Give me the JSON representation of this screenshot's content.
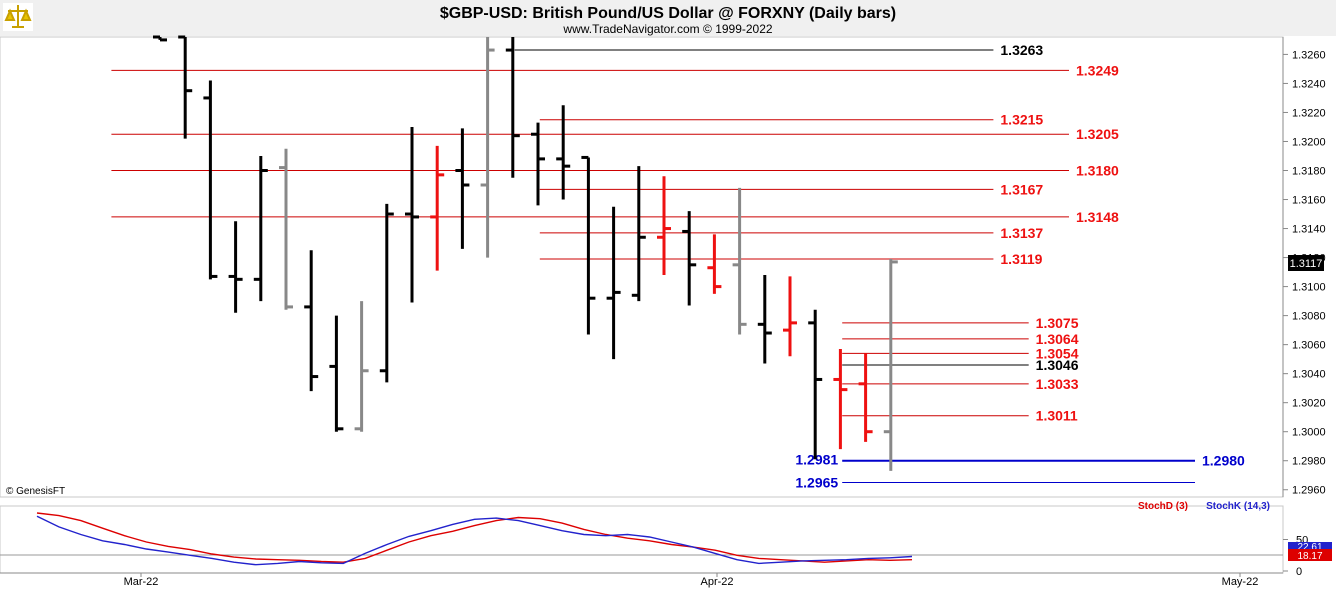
{
  "chart_data": [
    {
      "type": "ohlc",
      "title": "$GBP-USD:  British Pound/US Dollar @ FORXNY  (Daily bars)",
      "subtitle": "www.TradeNavigator.com © 1999-2022",
      "watermark": "© GenesisFT",
      "ylim": [
        1.2955,
        1.3272
      ],
      "yticks": [
        "1.2960",
        "1.2980",
        "1.3000",
        "1.3020",
        "1.3040",
        "1.3060",
        "1.3080",
        "1.3100",
        "1.3120",
        "1.3140",
        "1.3160",
        "1.3180",
        "1.3200",
        "1.3220",
        "1.3240",
        "1.3260"
      ],
      "last_price": "1.3117",
      "xticks": [
        "Mar-22",
        "Apr-22",
        "May-22"
      ],
      "colors": {
        "up": "#000000",
        "down": "#ee1111",
        "neutral": "#888888",
        "resistance": "#cc0000",
        "support": "#0000cc",
        "marker": "#000000"
      },
      "bars": [
        {
          "o": 1.3272,
          "h": 1.3272,
          "l": 1.327,
          "c": 1.327,
          "color": "black"
        },
        {
          "o": 1.3272,
          "h": 1.3272,
          "l": 1.3202,
          "c": 1.3235,
          "color": "black"
        },
        {
          "o": 1.323,
          "h": 1.3242,
          "l": 1.3105,
          "c": 1.3107,
          "color": "black"
        },
        {
          "o": 1.3107,
          "h": 1.3145,
          "l": 1.3082,
          "c": 1.3105,
          "color": "black"
        },
        {
          "o": 1.3105,
          "h": 1.319,
          "l": 1.309,
          "c": 1.318,
          "color": "black"
        },
        {
          "o": 1.3182,
          "h": 1.3195,
          "l": 1.3084,
          "c": 1.3086,
          "color": "gray"
        },
        {
          "o": 1.3086,
          "h": 1.3125,
          "l": 1.3028,
          "c": 1.3038,
          "color": "black"
        },
        {
          "o": 1.3045,
          "h": 1.308,
          "l": 1.3,
          "c": 1.3002,
          "color": "black"
        },
        {
          "o": 1.3002,
          "h": 1.309,
          "l": 1.3,
          "c": 1.3042,
          "color": "gray"
        },
        {
          "o": 1.3042,
          "h": 1.3157,
          "l": 1.3034,
          "c": 1.315,
          "color": "black"
        },
        {
          "o": 1.315,
          "h": 1.321,
          "l": 1.3089,
          "c": 1.3148,
          "color": "black"
        },
        {
          "o": 1.3148,
          "h": 1.3197,
          "l": 1.3111,
          "c": 1.3177,
          "color": "red"
        },
        {
          "o": 1.318,
          "h": 1.3209,
          "l": 1.3126,
          "c": 1.317,
          "color": "black"
        },
        {
          "o": 1.317,
          "h": 1.3272,
          "l": 1.312,
          "c": 1.3263,
          "color": "gray"
        },
        {
          "o": 1.3263,
          "h": 1.3272,
          "l": 1.3175,
          "c": 1.3204,
          "color": "black"
        },
        {
          "o": 1.3205,
          "h": 1.3213,
          "l": 1.3156,
          "c": 1.3188,
          "color": "black"
        },
        {
          "o": 1.3188,
          "h": 1.3225,
          "l": 1.316,
          "c": 1.3183,
          "color": "black"
        },
        {
          "o": 1.3189,
          "h": 1.3189,
          "l": 1.3067,
          "c": 1.3092,
          "color": "black"
        },
        {
          "o": 1.3092,
          "h": 1.3155,
          "l": 1.305,
          "c": 1.3096,
          "color": "black"
        },
        {
          "o": 1.3094,
          "h": 1.3183,
          "l": 1.309,
          "c": 1.3134,
          "color": "black"
        },
        {
          "o": 1.3134,
          "h": 1.3176,
          "l": 1.3108,
          "c": 1.314,
          "color": "red"
        },
        {
          "o": 1.3138,
          "h": 1.3152,
          "l": 1.3087,
          "c": 1.3115,
          "color": "black"
        },
        {
          "o": 1.3113,
          "h": 1.3136,
          "l": 1.3095,
          "c": 1.31,
          "color": "red"
        },
        {
          "o": 1.3115,
          "h": 1.3168,
          "l": 1.3067,
          "c": 1.3074,
          "color": "gray"
        },
        {
          "o": 1.3074,
          "h": 1.3108,
          "l": 1.3047,
          "c": 1.3068,
          "color": "black"
        },
        {
          "o": 1.307,
          "h": 1.3107,
          "l": 1.3052,
          "c": 1.3075,
          "color": "red"
        },
        {
          "o": 1.3075,
          "h": 1.3084,
          "l": 1.2981,
          "c": 1.3036,
          "color": "black"
        },
        {
          "o": 1.3036,
          "h": 1.3057,
          "l": 1.2988,
          "c": 1.3029,
          "color": "red"
        },
        {
          "o": 1.3033,
          "h": 1.3054,
          "l": 1.2993,
          "c": 1.3,
          "color": "red"
        },
        {
          "o": 1.3,
          "h": 1.3119,
          "l": 1.2973,
          "c": 1.3117,
          "color": "gray"
        }
      ],
      "levels": [
        {
          "value": 1.3263,
          "label": "1.3263",
          "color": "#000000",
          "line_from": 13,
          "line_to": 32,
          "label_side": "right",
          "label_color": "#000000"
        },
        {
          "value": 1.3249,
          "label": "1.3249",
          "color": "#cc0000",
          "line_from": -3,
          "line_to": 35,
          "label_side": "right",
          "label_color": "#ee1111"
        },
        {
          "value": 1.3215,
          "label": "1.3215",
          "color": "#cc0000",
          "line_from": 14,
          "line_to": 32,
          "label_side": "right",
          "label_color": "#ee1111"
        },
        {
          "value": 1.3205,
          "label": "1.3205",
          "color": "#cc0000",
          "line_from": -3,
          "line_to": 35,
          "label_side": "right",
          "label_color": "#ee1111"
        },
        {
          "value": 1.318,
          "label": "1.3180",
          "color": "#cc0000",
          "line_from": -3,
          "line_to": 35,
          "label_side": "right",
          "label_color": "#ee1111"
        },
        {
          "value": 1.3167,
          "label": "1.3167",
          "color": "#cc0000",
          "line_from": 14,
          "line_to": 32,
          "label_side": "right",
          "label_color": "#ee1111"
        },
        {
          "value": 1.3148,
          "label": "1.3148",
          "color": "#cc0000",
          "line_from": -3,
          "line_to": 35,
          "label_side": "right",
          "label_color": "#ee1111"
        },
        {
          "value": 1.3137,
          "label": "1.3137",
          "color": "#cc0000",
          "line_from": 14,
          "line_to": 32,
          "label_side": "right",
          "label_color": "#ee1111"
        },
        {
          "value": 1.3119,
          "label": "1.3119",
          "color": "#cc0000",
          "line_from": 14,
          "line_to": 32,
          "label_side": "right",
          "label_color": "#ee1111"
        },
        {
          "value": 1.3075,
          "label": "1.3075",
          "color": "#cc0000",
          "line_from": 26,
          "line_to": 33.4,
          "label_side": "right",
          "label_color": "#ee1111"
        },
        {
          "value": 1.3064,
          "label": "1.3064",
          "color": "#cc0000",
          "line_from": 26,
          "line_to": 33.4,
          "label_side": "right",
          "label_color": "#ee1111"
        },
        {
          "value": 1.3054,
          "label": "1.3054",
          "color": "#cc0000",
          "line_from": 26,
          "line_to": 33.4,
          "label_side": "right",
          "label_color": "#ee1111"
        },
        {
          "value": 1.3046,
          "label": "1.3046",
          "color": "#000000",
          "line_from": 26,
          "line_to": 33.4,
          "label_side": "right",
          "label_color": "#000000"
        },
        {
          "value": 1.3033,
          "label": "1.3033",
          "color": "#cc0000",
          "line_from": 26,
          "line_to": 33.4,
          "label_side": "right",
          "label_color": "#ee1111"
        },
        {
          "value": 1.3011,
          "label": "1.3011",
          "color": "#cc0000",
          "line_from": 26,
          "line_to": 33.4,
          "label_side": "right",
          "label_color": "#ee1111"
        },
        {
          "value": 1.298,
          "label": "1.2980",
          "color": "#0000cc",
          "line_from": 26,
          "line_to": 40,
          "label_side": "right",
          "label_color": "#0000cc",
          "thick": true
        },
        {
          "value": 1.2981,
          "label": "1.2981",
          "color": "#0000cc",
          "line_from": 26,
          "line_to": 26,
          "label_side": "left",
          "label_color": "#0000cc"
        },
        {
          "value": 1.2965,
          "label": "1.2965",
          "color": "#0000cc",
          "line_from": 26,
          "line_to": 40,
          "label_side": "left",
          "label_color": "#0000cc"
        }
      ]
    },
    {
      "type": "line",
      "name": "stochastic",
      "ylim": [
        0,
        100
      ],
      "yticks": [
        "0",
        "50"
      ],
      "legend": [
        "StochD (3)",
        "StochK (14,3)"
      ],
      "last_values": {
        "stochd": "18.17",
        "stochk": "22.61"
      },
      "series": [
        {
          "name": "StochD (3)",
          "color": "#dd0000",
          "values": [
            92,
            88,
            80,
            68,
            56,
            46,
            39,
            34,
            27,
            22,
            19,
            18,
            17,
            15,
            14,
            20,
            33,
            46,
            56,
            63,
            72,
            80,
            85,
            83,
            76,
            66,
            58,
            52,
            48,
            42,
            38,
            33,
            25,
            20,
            18,
            16,
            14,
            16,
            18,
            17,
            18
          ]
        },
        {
          "name": "StochK (14,3)",
          "color": "#2222cc",
          "values": [
            87,
            70,
            58,
            48,
            42,
            35,
            30,
            25,
            20,
            14,
            10,
            12,
            15,
            13,
            12,
            28,
            42,
            55,
            64,
            74,
            82,
            84,
            80,
            72,
            64,
            58,
            56,
            58,
            54,
            46,
            38,
            28,
            18,
            12,
            14,
            16,
            17,
            18,
            20,
            21,
            23
          ]
        }
      ]
    }
  ]
}
